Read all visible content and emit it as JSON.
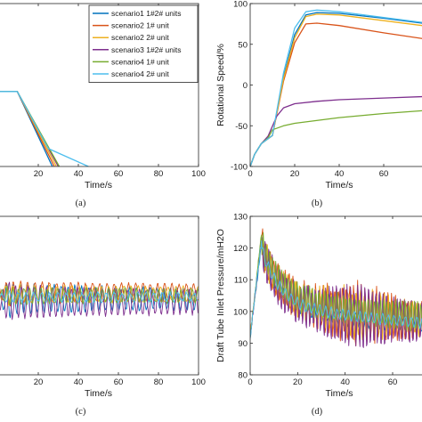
{
  "chart_data": [
    {
      "id": "a",
      "type": "line",
      "caption": "(a)",
      "xlabel": "Time/s",
      "ylabel": "",
      "xlim": [
        0,
        100
      ],
      "ylim": [
        0,
        1
      ],
      "xticks": [
        20,
        40,
        60,
        80,
        100
      ],
      "yticks": [],
      "legend_position": "top-right",
      "series": [
        {
          "name": "scenario1 1#2# units",
          "color": "#0072BD",
          "x": [
            0,
            9.5,
            27
          ],
          "y": [
            0.46,
            0.46,
            0
          ]
        },
        {
          "name": "scenario2 1# unit",
          "color": "#D95319",
          "x": [
            0,
            9.5,
            28
          ],
          "y": [
            0.46,
            0.46,
            0
          ]
        },
        {
          "name": "scenario2 2# unit",
          "color": "#EDB120",
          "x": [
            0,
            9.5,
            29
          ],
          "y": [
            0.46,
            0.46,
            0
          ]
        },
        {
          "name": "scenario3 1#2# units",
          "color": "#7E2F8E",
          "x": [
            0,
            9.5,
            30
          ],
          "y": [
            0.46,
            0.46,
            0
          ]
        },
        {
          "name": "scenario4 1# unit",
          "color": "#77AC30",
          "x": [
            0,
            9.5,
            30.5
          ],
          "y": [
            0.46,
            0.46,
            0
          ]
        },
        {
          "name": "scenario4 2# unit",
          "color": "#4DBEEE",
          "x": [
            0,
            9.5,
            25,
            45
          ],
          "y": [
            0.46,
            0.46,
            0.11,
            0
          ]
        }
      ]
    },
    {
      "id": "b",
      "type": "line",
      "caption": "(b)",
      "xlabel": "Time/s",
      "ylabel": "Rotational Speed/%",
      "xlim": [
        0,
        80
      ],
      "ylim": [
        -100,
        100
      ],
      "xticks": [
        0,
        20,
        40,
        60
      ],
      "yticks": [
        -100,
        -50,
        0,
        50,
        100
      ],
      "series": [
        {
          "name": "scenario1 1#2# units",
          "color": "#0072BD",
          "x": [
            0,
            2,
            5,
            10,
            15,
            20,
            25,
            30,
            40,
            60,
            80
          ],
          "y": [
            -100,
            -85,
            -72,
            -62,
            10,
            62,
            86,
            89,
            88,
            82,
            75
          ]
        },
        {
          "name": "scenario2 1# unit",
          "color": "#D95319",
          "x": [
            0,
            2,
            5,
            10,
            15,
            20,
            25,
            30,
            40,
            60,
            80
          ],
          "y": [
            -100,
            -85,
            -72,
            -62,
            5,
            52,
            75,
            76,
            73,
            64,
            56
          ]
        },
        {
          "name": "scenario2 2# unit",
          "color": "#EDB120",
          "x": [
            0,
            2,
            5,
            10,
            15,
            20,
            25,
            30,
            40,
            60,
            80
          ],
          "y": [
            -100,
            -85,
            -72,
            -62,
            8,
            58,
            84,
            87,
            86,
            79,
            72
          ]
        },
        {
          "name": "scenario3 1#2# units",
          "color": "#7E2F8E",
          "x": [
            0,
            2,
            5,
            8,
            12,
            15,
            20,
            30,
            40,
            60,
            80
          ],
          "y": [
            -100,
            -85,
            -72,
            -63,
            -38,
            -28,
            -23,
            -20,
            -18,
            -16,
            -14
          ]
        },
        {
          "name": "scenario4 1# unit",
          "color": "#77AC30",
          "x": [
            0,
            2,
            5,
            8,
            10,
            15,
            20,
            40,
            60,
            80
          ],
          "y": [
            -100,
            -85,
            -72,
            -65,
            -55,
            -50,
            -47,
            -40,
            -35,
            -31
          ]
        },
        {
          "name": "scenario4 2# unit",
          "color": "#4DBEEE",
          "x": [
            0,
            2,
            5,
            10,
            15,
            20,
            25,
            30,
            40,
            60,
            80
          ],
          "y": [
            -100,
            -85,
            -72,
            -62,
            15,
            70,
            90,
            92,
            90,
            83,
            76
          ]
        }
      ]
    },
    {
      "id": "c",
      "type": "line",
      "caption": "(c)",
      "xlabel": "Time/s",
      "ylabel": "",
      "xlim": [
        0,
        100
      ],
      "ylim": [
        0,
        1
      ],
      "xticks": [
        20,
        40,
        60,
        80,
        100
      ],
      "yticks": [],
      "series": [
        {
          "name": "scenario1 1#2# units",
          "color": "#0072BD",
          "baseline": 0.48,
          "amplitude": 0.1,
          "decay": 0.6,
          "period": 3.4
        },
        {
          "name": "scenario2 1# unit",
          "color": "#D95319",
          "baseline": 0.52,
          "amplitude": 0.07,
          "decay": 0.7,
          "period": 3.6
        },
        {
          "name": "scenario2 2# unit",
          "color": "#EDB120",
          "baseline": 0.51,
          "amplitude": 0.06,
          "decay": 0.7,
          "period": 3.7
        },
        {
          "name": "scenario3 1#2# units",
          "color": "#7E2F8E",
          "baseline": 0.46,
          "amplitude": 0.11,
          "decay": 0.6,
          "period": 3.1
        },
        {
          "name": "scenario4 1# unit",
          "color": "#77AC30",
          "baseline": 0.5,
          "amplitude": 0.05,
          "decay": 0.8,
          "period": 2.8
        },
        {
          "name": "scenario4 2# unit",
          "color": "#4DBEEE",
          "baseline": 0.49,
          "amplitude": 0.03,
          "decay": 0.85,
          "period": 4.0
        }
      ]
    },
    {
      "id": "d",
      "type": "line",
      "caption": "(d)",
      "xlabel": "Time/s",
      "ylabel": "Draft Tube Inlet Pressure/mH2O",
      "xlim": [
        0,
        75
      ],
      "ylim": [
        80,
        130
      ],
      "xticks": [
        0,
        20,
        40,
        60
      ],
      "yticks": [
        80,
        90,
        100,
        110,
        120,
        130
      ],
      "series": [
        {
          "name": "scenario1 1#2# units",
          "color": "#0072BD",
          "baseline": 98,
          "amplitude": 2.5,
          "period": 2.2
        },
        {
          "name": "scenario2 1# unit",
          "color": "#D95319",
          "baseline": 100,
          "amplitude": 7.0,
          "period": 1.6
        },
        {
          "name": "scenario2 2# unit",
          "color": "#EDB120",
          "baseline": 100,
          "amplitude": 6.0,
          "period": 1.7
        },
        {
          "name": "scenario3 1#2# units",
          "color": "#7E2F8E",
          "baseline": 99,
          "amplitude": 7.5,
          "period": 1.5
        },
        {
          "name": "scenario4 1# unit",
          "color": "#77AC30",
          "baseline": 101,
          "amplitude": 5.0,
          "period": 1.3
        },
        {
          "name": "scenario4 2# unit",
          "color": "#4DBEEE",
          "baseline": 99,
          "amplitude": 2.0,
          "period": 2.4
        }
      ]
    }
  ]
}
